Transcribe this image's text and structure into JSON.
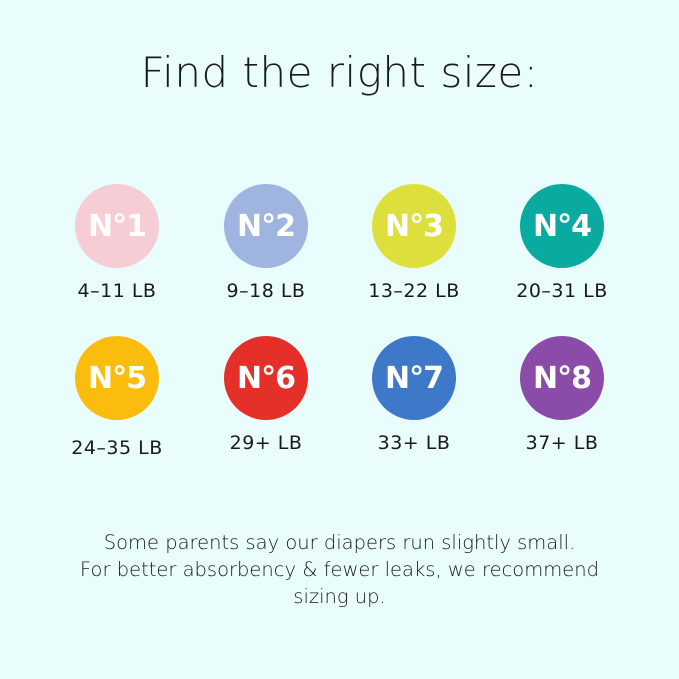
{
  "title": "Find the right size:",
  "sizes": [
    {
      "label": "N°1",
      "range": "4–11 LB",
      "color": "#f6cdd5"
    },
    {
      "label": "N°2",
      "range": "9–18 LB",
      "color": "#9fb5e0"
    },
    {
      "label": "N°3",
      "range": "13–22 LB",
      "color": "#dde03c"
    },
    {
      "label": "N°4",
      "range": "20–31 LB",
      "color": "#0aaaa0"
    },
    {
      "label": "N°5",
      "range": "24–35 LB",
      "color": "#fbbd0d"
    },
    {
      "label": "N°6",
      "range": "29+ LB",
      "color": "#e5302a"
    },
    {
      "label": "N°7",
      "range": "33+ LB",
      "color": "#3d79c8"
    },
    {
      "label": "N°8",
      "range": "37+ LB",
      "color": "#8a4ca8"
    }
  ],
  "note": {
    "line1": "Some parents say our diapers run slightly small.",
    "line2": "For better absorbency & fewer leaks, we recommend",
    "line3": "sizing up."
  }
}
